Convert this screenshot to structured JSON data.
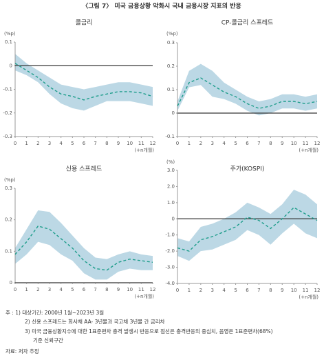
{
  "title": "〈그림 7〉 미국 금융상황 악화시 국내 금융시장 지표의 반응",
  "chart_data": [
    {
      "type": "line",
      "title": "콜금리",
      "y_unit": "(%p)",
      "x_unit": "(+n개월)",
      "x": [
        0,
        1,
        2,
        3,
        4,
        5,
        6,
        7,
        8,
        9,
        10,
        11,
        12
      ],
      "xlim": [
        0,
        12
      ],
      "ylim": [
        -0.3,
        0.1
      ],
      "yticks": [
        0.1,
        0,
        -0.1,
        -0.2,
        -0.3
      ],
      "values": [
        0.01,
        -0.02,
        -0.05,
        -0.09,
        -0.12,
        -0.13,
        -0.145,
        -0.13,
        -0.12,
        -0.11,
        -0.11,
        -0.115,
        -0.13
      ],
      "upper": [
        0.05,
        0.01,
        -0.02,
        -0.05,
        -0.08,
        -0.09,
        -0.1,
        -0.09,
        -0.08,
        -0.07,
        -0.07,
        -0.08,
        -0.09
      ],
      "lower": [
        -0.02,
        -0.04,
        -0.07,
        -0.12,
        -0.16,
        -0.18,
        -0.19,
        -0.17,
        -0.15,
        -0.15,
        -0.15,
        -0.16,
        -0.17
      ],
      "color": "#1e9d8b",
      "band_color": "#bcd8e5"
    },
    {
      "type": "line",
      "title": "CP-콜금리 스프레드",
      "y_unit": "(%p)",
      "x_unit": "(+n개월)",
      "x": [
        0,
        1,
        2,
        3,
        4,
        5,
        6,
        7,
        8,
        9,
        10,
        11,
        12
      ],
      "xlim": [
        0,
        12
      ],
      "ylim": [
        -0.1,
        0.3
      ],
      "yticks": [
        0.3,
        0.2,
        0.1,
        0,
        -0.1
      ],
      "values": [
        0.03,
        0.13,
        0.15,
        0.12,
        0.09,
        0.07,
        0.04,
        0.02,
        0.03,
        0.05,
        0.05,
        0.04,
        0.05
      ],
      "upper": [
        0.05,
        0.18,
        0.21,
        0.18,
        0.13,
        0.1,
        0.07,
        0.05,
        0.06,
        0.08,
        0.08,
        0.07,
        0.08
      ],
      "lower": [
        0.01,
        0.11,
        0.12,
        0.07,
        0.06,
        0.04,
        0.01,
        -0.01,
        0.0,
        0.02,
        0.02,
        0.01,
        0.02
      ],
      "color": "#1e9d8b",
      "band_color": "#bcd8e5"
    },
    {
      "type": "line",
      "title": "신용 스프레드",
      "y_unit": "(%p)",
      "x_unit": "(+n개월)",
      "x": [
        0,
        1,
        2,
        3,
        4,
        5,
        6,
        7,
        8,
        9,
        10,
        11,
        12
      ],
      "xlim": [
        0,
        12
      ],
      "ylim": [
        0,
        0.3
      ],
      "yticks": [
        0.3,
        0.2,
        0.1,
        0
      ],
      "values": [
        0.09,
        0.13,
        0.18,
        0.17,
        0.14,
        0.11,
        0.07,
        0.045,
        0.04,
        0.065,
        0.075,
        0.07,
        0.065
      ],
      "upper": [
        0.11,
        0.17,
        0.23,
        0.225,
        0.19,
        0.15,
        0.11,
        0.08,
        0.075,
        0.09,
        0.1,
        0.09,
        0.085
      ],
      "lower": [
        0.06,
        0.09,
        0.13,
        0.12,
        0.09,
        0.07,
        0.03,
        0.01,
        0.01,
        0.035,
        0.045,
        0.04,
        0.04
      ],
      "color": "#1e9d8b",
      "band_color": "#bcd8e5"
    },
    {
      "type": "line",
      "title": "주가(KOSPI)",
      "y_unit": "(%)",
      "x_unit": "(+n개월)",
      "x": [
        0,
        1,
        2,
        3,
        4,
        5,
        6,
        7,
        8,
        9,
        10,
        11,
        12
      ],
      "xlim": [
        0,
        12
      ],
      "ylim": [
        -4,
        3
      ],
      "yticks": [
        {
          "value": 3,
          "label": "3.0"
        },
        {
          "value": 2,
          "label": "2.0"
        },
        {
          "value": 1,
          "label": "1.0"
        },
        0,
        {
          "value": -1,
          "label": "-1.0"
        },
        {
          "value": -2,
          "label": "-2.0"
        },
        {
          "value": -3,
          "label": "-3.0"
        },
        {
          "value": -4,
          "label": "-4.0"
        }
      ],
      "values": [
        -1.8,
        -2.0,
        -1.3,
        -1.1,
        -0.8,
        -0.5,
        0.1,
        -0.1,
        -0.6,
        0.0,
        0.7,
        0.3,
        -0.1
      ],
      "upper": [
        -1.2,
        -1.4,
        -0.5,
        -0.3,
        0.0,
        0.4,
        1.0,
        0.7,
        0.3,
        0.9,
        1.8,
        1.5,
        0.9
      ],
      "lower": [
        -2.3,
        -2.6,
        -2.0,
        -1.9,
        -1.6,
        -1.3,
        -0.7,
        -1.0,
        -1.6,
        -0.9,
        -0.3,
        -0.9,
        -1.2
      ],
      "color": "#1e9d8b",
      "band_color": "#bcd8e5"
    }
  ],
  "notes": [
    "주 : 1) 대상기간: 2000년 1월~2023년 3월",
    "2) 신용 스프레드는 회사채 AA- 3년물과 국고채 3년물 간 금리차",
    "3) 미국 금융상황지수에 대한 1표준편차 충격 발생시 반응으로 점선은 충격반응의 중심치, 음영은 1표준편차(68%)",
    "기준 신뢰구간"
  ],
  "source": "자료: 저자 추정"
}
